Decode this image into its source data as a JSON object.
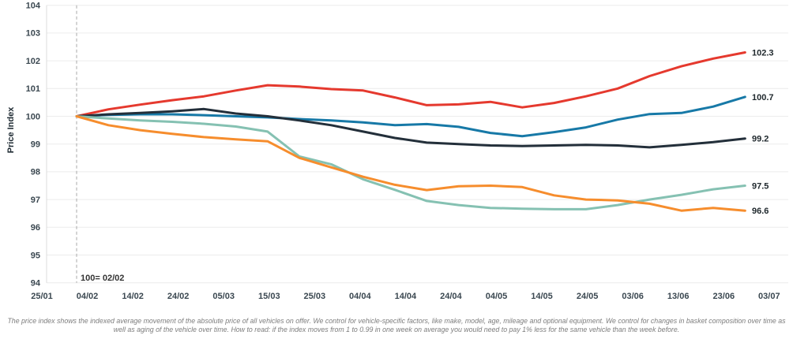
{
  "chart_data": {
    "type": "line",
    "ylabel": "Price Index",
    "ylim": [
      94,
      104
    ],
    "y_ticks": [
      94,
      95,
      96,
      97,
      98,
      99,
      100,
      101,
      102,
      103,
      104
    ],
    "x_tick_labels": [
      "25/01",
      "04/02",
      "14/02",
      "24/02",
      "05/03",
      "15/03",
      "25/03",
      "04/04",
      "14/04",
      "24/04",
      "04/05",
      "14/05",
      "24/05",
      "03/06",
      "13/06",
      "23/06",
      "03/07"
    ],
    "grid": "horizontal",
    "legend_position": "none",
    "baseline_annotation": "100= 02/02",
    "baseline_date": "02/02",
    "points_interval": "weekly",
    "series": [
      {
        "name": "series-red",
        "color": "#e5392e",
        "end_label": "102.3",
        "values": [
          100,
          100.25,
          100.42,
          100.58,
          100.72,
          100.93,
          101.12,
          101.07,
          100.98,
          100.93,
          100.68,
          100.4,
          100.43,
          100.52,
          100.32,
          100.48,
          100.72,
          101.0,
          101.45,
          101.8,
          102.08,
          102.3
        ]
      },
      {
        "name": "series-blue",
        "color": "#1779a7",
        "end_label": "100.7",
        "values": [
          100,
          100.05,
          100.07,
          100.07,
          100.04,
          100.0,
          99.96,
          99.9,
          99.85,
          99.78,
          99.68,
          99.72,
          99.62,
          99.4,
          99.28,
          99.43,
          99.6,
          99.88,
          100.08,
          100.12,
          100.35,
          100.7
        ]
      },
      {
        "name": "series-dark-navy",
        "color": "#232f3a",
        "end_label": "99.2",
        "values": [
          100,
          100.07,
          100.12,
          100.18,
          100.26,
          100.1,
          100.0,
          99.85,
          99.68,
          99.45,
          99.22,
          99.05,
          99.0,
          98.95,
          98.93,
          98.95,
          98.97,
          98.95,
          98.88,
          98.97,
          99.07,
          99.2
        ]
      },
      {
        "name": "series-seafoam",
        "color": "#85c1b2",
        "end_label": "97.5",
        "values": [
          100,
          99.92,
          99.85,
          99.8,
          99.73,
          99.63,
          99.45,
          98.55,
          98.27,
          97.73,
          97.35,
          96.95,
          96.8,
          96.7,
          96.67,
          96.65,
          96.65,
          96.8,
          97.0,
          97.17,
          97.37,
          97.5
        ]
      },
      {
        "name": "series-orange",
        "color": "#f68d2d",
        "end_label": "96.6",
        "values": [
          100,
          99.68,
          99.5,
          99.37,
          99.25,
          99.17,
          99.1,
          98.5,
          98.16,
          97.82,
          97.53,
          97.34,
          97.48,
          97.5,
          97.45,
          97.15,
          97.0,
          96.97,
          96.85,
          96.6,
          96.7,
          96.6
        ]
      }
    ]
  },
  "footnote": {
    "text": "The price index shows the indexed average movement of the absolute price of all vehicles on offer. We control for vehicle-specific factors, like make, model, age, mileage and optional equipment. We control for changes in basket composition over time as well as aging of the vehicle over time. How to read: if the index moves from 1 to 0.99 in one week on average you would need to pay 1% less for the same vehicle than the week before."
  }
}
